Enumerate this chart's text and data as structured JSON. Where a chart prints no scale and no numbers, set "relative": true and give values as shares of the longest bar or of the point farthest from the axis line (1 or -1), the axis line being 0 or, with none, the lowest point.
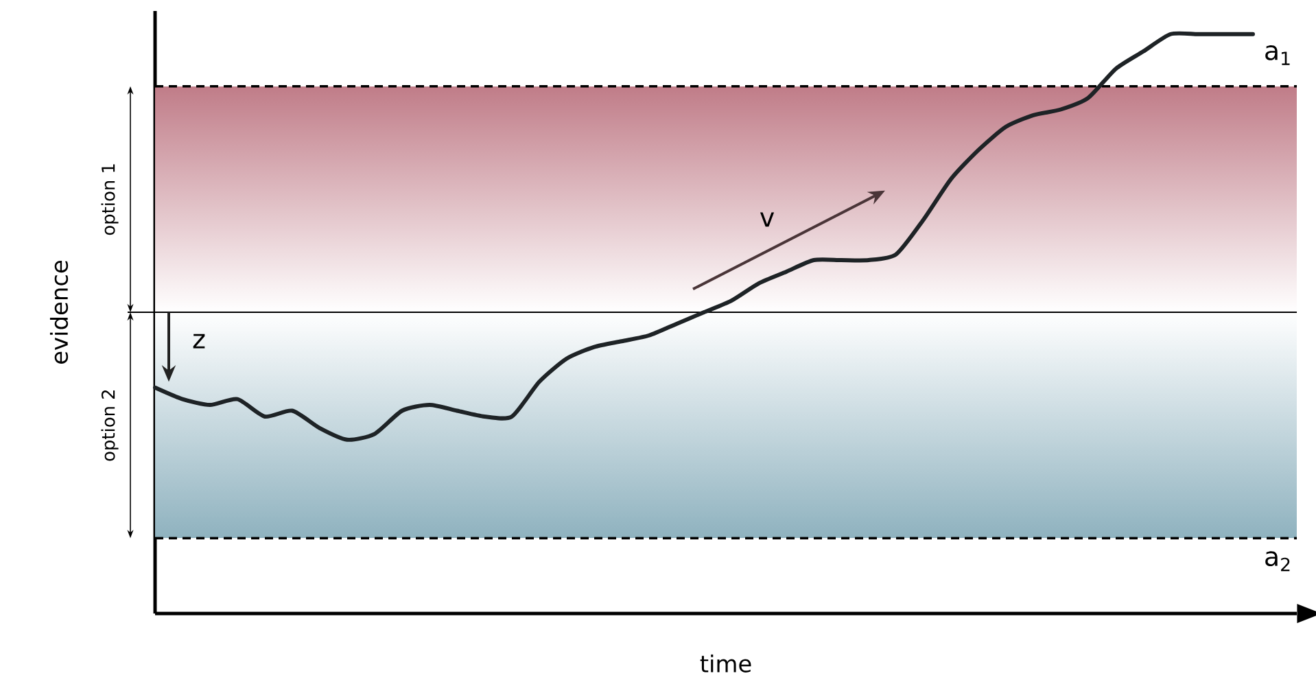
{
  "chart_data": {
    "type": "line",
    "relative": true,
    "xlabel": "time",
    "ylabel": "evidence",
    "categories": [
      null,
      null,
      null,
      null,
      null,
      null,
      null,
      null,
      null,
      null,
      null,
      null,
      null,
      null,
      null,
      null,
      null,
      null,
      null,
      null,
      null,
      null,
      null,
      null,
      null,
      null,
      null,
      null,
      null,
      null,
      null,
      null,
      null,
      null,
      null,
      null,
      null,
      null,
      null,
      null,
      null
    ],
    "series": [
      {
        "color": "#1e2326",
        "values": [
          0.39,
          0.37,
          0.36,
          0.37,
          0.34,
          0.35,
          0.32,
          0.3,
          0.31,
          0.35,
          0.36,
          0.35,
          0.34,
          0.34,
          0.4,
          0.44,
          0.46,
          0.47,
          0.48,
          0.5,
          0.52,
          0.54,
          0.57,
          0.59,
          0.61,
          0.61,
          0.61,
          0.62,
          0.68,
          0.75,
          0.8,
          0.84,
          0.86,
          0.87,
          0.89,
          0.94,
          0.97,
          1.0,
          1.0,
          1.0,
          1.0
        ]
      }
    ],
    "ref_lines": [
      {
        "axis": "y",
        "value": 0.91,
        "label": "a$_{1}$",
        "line_style": "dashed"
      },
      {
        "axis": "y",
        "value": 0.13,
        "label": "a$_{2}$",
        "line_style": "dashed"
      },
      {
        "axis": "y",
        "value": 0.52,
        "line_style": "solid"
      }
    ],
    "bands": [
      {
        "axis": "y",
        "from": 0.52,
        "to": 0.91,
        "label": "option 1",
        "color": "#c07c88"
      },
      {
        "axis": "y",
        "from": 0.13,
        "to": 0.52,
        "label": "option 2",
        "color": "#8fb2bf"
      }
    ],
    "annotations": [
      "z",
      "v"
    ],
    "grid": false
  }
}
